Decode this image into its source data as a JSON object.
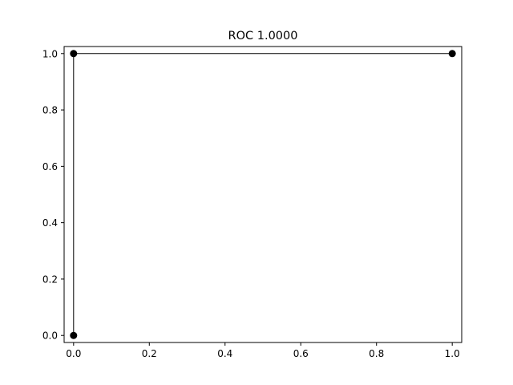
{
  "chart_data": {
    "type": "line",
    "title": "ROC 1.0000",
    "xlabel": "",
    "ylabel": "",
    "series": [
      {
        "name": "ROC",
        "x": [
          0.0,
          0.0,
          1.0
        ],
        "y": [
          0.0,
          1.0,
          1.0
        ],
        "marker": "circle",
        "color": "#000000"
      }
    ],
    "xlim": [
      -0.025,
      1.025
    ],
    "ylim": [
      -0.025,
      1.025
    ],
    "xticks": [
      0.0,
      0.2,
      0.4,
      0.6,
      0.8,
      1.0
    ],
    "xtick_labels": [
      "0.0",
      "0.2",
      "0.4",
      "0.6",
      "0.8",
      "1.0"
    ],
    "yticks": [
      0.0,
      0.2,
      0.4,
      0.6,
      0.8,
      1.0
    ],
    "ytick_labels": [
      "0.0",
      "0.2",
      "0.4",
      "0.6",
      "0.8",
      "1.0"
    ],
    "grid": false,
    "legend": "none"
  }
}
